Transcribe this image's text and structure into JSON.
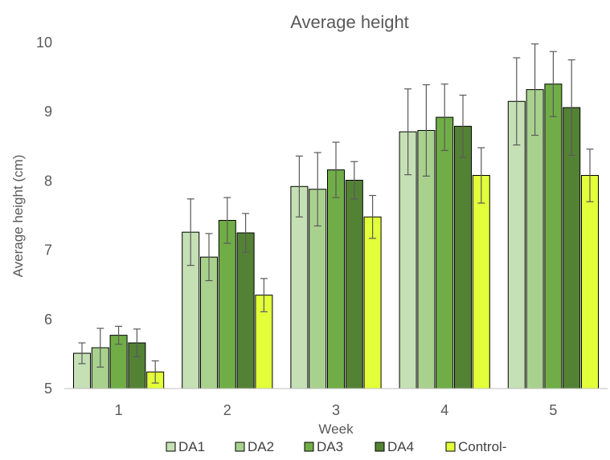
{
  "chart_data": {
    "type": "bar",
    "title": "Average height",
    "xlabel": "Week",
    "ylabel": "Average height (cm)",
    "ylim": [
      5,
      10
    ],
    "yticks": [
      5,
      6,
      7,
      8,
      9,
      10
    ],
    "categories": [
      "1",
      "2",
      "3",
      "4",
      "5"
    ],
    "grid": false,
    "legend_position": "bottom",
    "error_bars": true,
    "series": [
      {
        "name": "DA1",
        "color": "#c5e0b4",
        "values": [
          5.51,
          7.26,
          7.92,
          8.71,
          9.15
        ],
        "errors": [
          0.15,
          0.48,
          0.44,
          0.62,
          0.63
        ]
      },
      {
        "name": "DA2",
        "color": "#a9d18e",
        "values": [
          5.59,
          6.9,
          7.88,
          8.73,
          9.32
        ],
        "errors": [
          0.28,
          0.34,
          0.53,
          0.66,
          0.66
        ]
      },
      {
        "name": "DA3",
        "color": "#70ad47",
        "values": [
          5.77,
          7.43,
          8.16,
          8.92,
          9.4
        ],
        "errors": [
          0.13,
          0.33,
          0.4,
          0.48,
          0.47
        ]
      },
      {
        "name": "DA4",
        "color": "#548235",
        "values": [
          5.66,
          7.25,
          8.01,
          8.79,
          9.06
        ],
        "errors": [
          0.2,
          0.28,
          0.27,
          0.45,
          0.69
        ]
      },
      {
        "name": "Control-",
        "color": "#e2ff3a",
        "values": [
          5.24,
          6.35,
          7.48,
          8.08,
          8.08
        ],
        "errors": [
          0.16,
          0.24,
          0.31,
          0.4,
          0.38
        ]
      }
    ]
  }
}
